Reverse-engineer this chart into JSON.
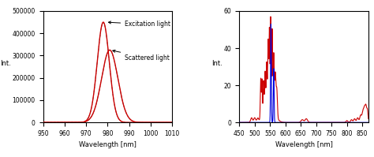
{
  "left_plot": {
    "xlabel": "Wavelength [nm]",
    "ylabel": "Int.",
    "xlim": [
      950,
      1010
    ],
    "ylim": [
      0,
      500000
    ],
    "yticks": [
      0,
      100000,
      200000,
      300000,
      400000,
      500000
    ],
    "xticks": [
      950,
      960,
      970,
      980,
      990,
      1000,
      1010
    ],
    "annotation_excitation": "Excitation light",
    "annotation_scattered": "Scattered light",
    "line_color_red": "#cc0000",
    "line_color_dashed": "#333333"
  },
  "right_plot": {
    "xlabel": "Wavelength [nm]",
    "ylabel": "Int.",
    "xlim": [
      450,
      870
    ],
    "ylim": [
      0,
      60
    ],
    "yticks": [
      0,
      20,
      40,
      60
    ],
    "xticks": [
      450,
      500,
      550,
      600,
      650,
      700,
      750,
      800,
      850
    ],
    "xticklabels": [
      "450",
      "500",
      "550",
      "600",
      "650",
      "700",
      "750",
      "800",
      "850"
    ],
    "line_color_red": "#cc0000",
    "line_color_blue": "#0000dd"
  },
  "background_color": "#ffffff",
  "text_color": "#000000"
}
